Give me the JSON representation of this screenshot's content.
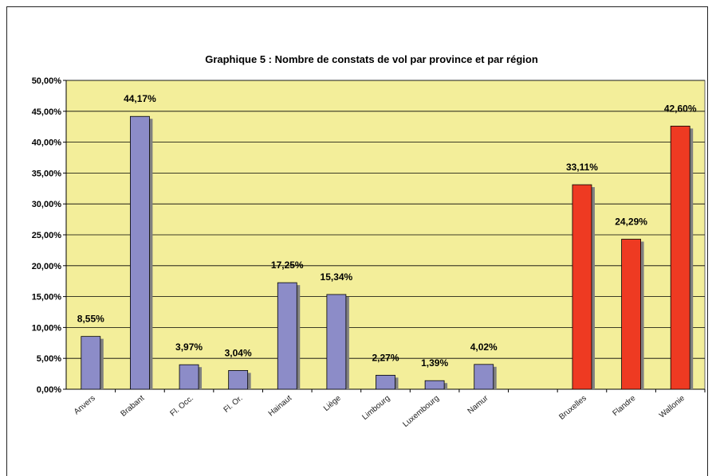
{
  "chart_data": {
    "type": "bar",
    "title": "Graphique 5 : Nombre de constats de vol par province et par région",
    "xlabel": "",
    "ylabel": "",
    "ylim": [
      0,
      50
    ],
    "yticks": [
      "0,00%",
      "5,00%",
      "10,00%",
      "15,00%",
      "20,00%",
      "25,00%",
      "30,00%",
      "35,00%",
      "40,00%",
      "45,00%",
      "50,00%"
    ],
    "grid": true,
    "plot_background": "#f3ee9a",
    "categories": [
      "Anvers",
      "Brabant",
      "Fl. Occ.",
      "Fl. Or.",
      "Hainaut",
      "Liège",
      "Limbourg",
      "Luxembourg",
      "Namur",
      "",
      "Bruxelles",
      "Flandre",
      "Wallonie"
    ],
    "values": [
      8.55,
      44.17,
      3.97,
      3.04,
      17.25,
      15.34,
      2.27,
      1.39,
      4.02,
      null,
      33.11,
      24.29,
      42.6
    ],
    "data_labels": [
      "8,55%",
      "44,17%",
      "3,97%",
      "3,04%",
      "17,25%",
      "15,34%",
      "2,27%",
      "1,39%",
      "4,02%",
      "",
      "33,11%",
      "24,29%",
      "42,60%"
    ],
    "bar_colors": [
      "#8c8cc8",
      "#8c8cc8",
      "#8c8cc8",
      "#8c8cc8",
      "#8c8cc8",
      "#8c8cc8",
      "#8c8cc8",
      "#8c8cc8",
      "#8c8cc8",
      "",
      "#ee3a22",
      "#ee3a22",
      "#ee3a22"
    ]
  }
}
